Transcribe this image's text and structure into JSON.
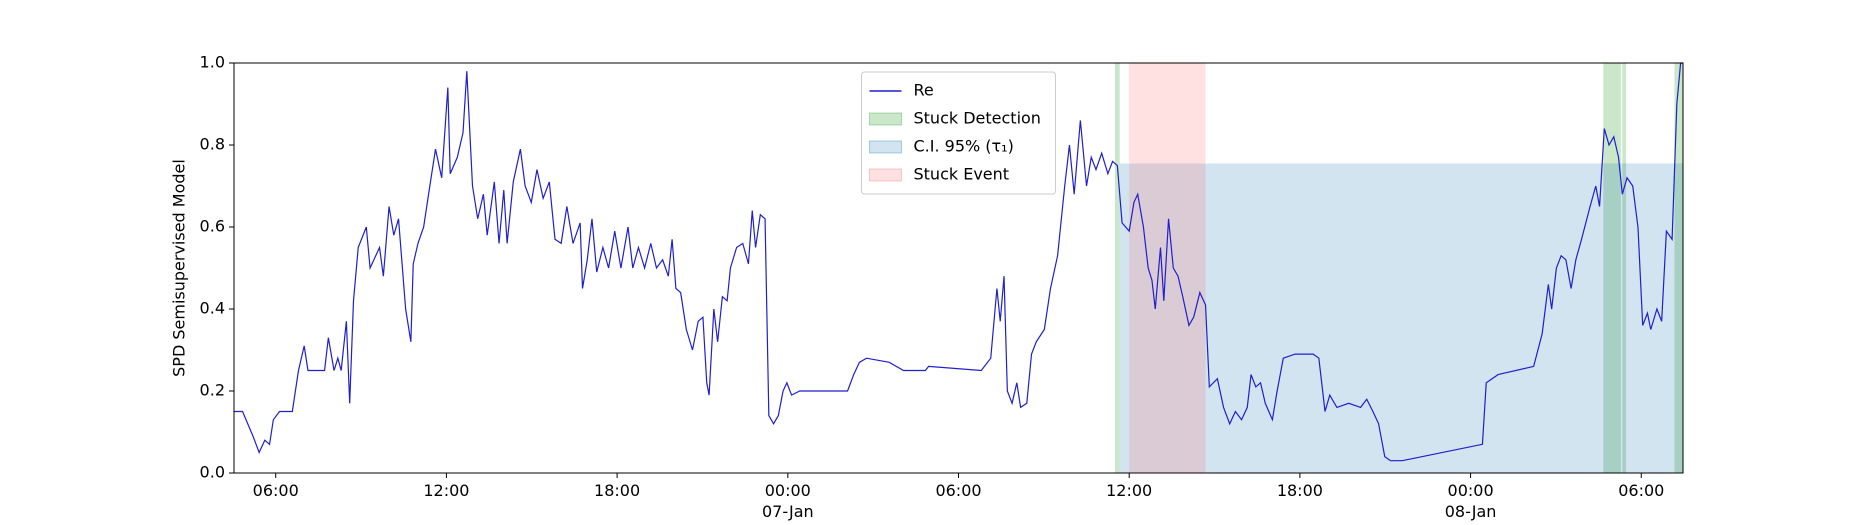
{
  "chart_data": {
    "type": "line",
    "ylabel": "SPD Semisupervised Model",
    "xlim": [
      "1900-01-06T04:32",
      "1900-01-08T07:28"
    ],
    "ylim": [
      0,
      1
    ],
    "xticks": [
      {
        "value": "1900-01-06T06:00",
        "label": "06:00"
      },
      {
        "value": "1900-01-06T12:00",
        "label": "12:00"
      },
      {
        "value": "1900-01-06T18:00",
        "label": "18:00"
      },
      {
        "value": "1900-01-07T00:00",
        "label": "00:00\n07-Jan\n1900"
      },
      {
        "value": "1900-01-07T06:00",
        "label": "06:00"
      },
      {
        "value": "1900-01-07T12:00",
        "label": "12:00"
      },
      {
        "value": "1900-01-07T18:00",
        "label": "18:00"
      },
      {
        "value": "1900-01-08T00:00",
        "label": "00:00\n08-Jan"
      },
      {
        "value": "1900-01-08T06:00",
        "label": "06:00"
      }
    ],
    "yticks": [
      {
        "value": 0,
        "label": "0.0"
      },
      0.2,
      0.4,
      0.6,
      0.8,
      {
        "value": 1,
        "label": "1.0"
      }
    ],
    "legend": "upper center",
    "series": [
      {
        "name": "Re",
        "color": "#1f1fcc",
        "x": [
          "1900-01-06T04:32",
          "1900-01-06T04:50",
          "1900-01-06T05:12",
          "1900-01-06T05:25",
          "1900-01-06T05:37",
          "1900-01-06T05:47",
          "1900-01-06T05:55",
          "1900-01-06T06:08",
          "1900-01-06T06:35",
          "1900-01-06T06:48",
          "1900-01-06T07:00",
          "1900-01-06T07:08",
          "1900-01-06T07:43",
          "1900-01-06T07:51",
          "1900-01-06T08:03",
          "1900-01-06T08:11",
          "1900-01-06T08:18",
          "1900-01-06T08:29",
          "1900-01-06T08:36",
          "1900-01-06T08:44",
          "1900-01-06T08:54",
          "1900-01-06T09:11",
          "1900-01-06T09:19",
          "1900-01-06T09:39",
          "1900-01-06T09:47",
          "1900-01-06T09:59",
          "1900-01-06T10:09",
          "1900-01-06T10:19",
          "1900-01-06T10:34",
          "1900-01-06T10:45",
          "1900-01-06T10:50",
          "1900-01-06T11:00",
          "1900-01-06T11:12",
          "1900-01-06T11:25",
          "1900-01-06T11:37",
          "1900-01-06T11:50",
          "1900-01-06T12:03",
          "1900-01-06T12:08",
          "1900-01-06T12:23",
          "1900-01-06T12:35",
          "1900-01-06T12:43",
          "1900-01-06T12:55",
          "1900-01-06T13:06",
          "1900-01-06T13:18",
          "1900-01-06T13:26",
          "1900-01-06T13:41",
          "1900-01-06T13:51",
          "1900-01-06T14:01",
          "1900-01-06T14:08",
          "1900-01-06T14:21",
          "1900-01-06T14:36",
          "1900-01-06T14:46",
          "1900-01-06T14:59",
          "1900-01-06T15:11",
          "1900-01-06T15:24",
          "1900-01-06T15:37",
          "1900-01-06T15:49",
          "1900-01-06T16:02",
          "1900-01-06T16:14",
          "1900-01-06T16:27",
          "1900-01-06T16:42",
          "1900-01-06T16:47",
          "1900-01-06T16:57",
          "1900-01-06T17:07",
          "1900-01-06T17:17",
          "1900-01-06T17:30",
          "1900-01-06T17:42",
          "1900-01-06T17:55",
          "1900-01-06T18:08",
          "1900-01-06T18:23",
          "1900-01-06T18:33",
          "1900-01-06T18:45",
          "1900-01-06T18:58",
          "1900-01-06T19:11",
          "1900-01-06T19:23",
          "1900-01-06T19:36",
          "1900-01-06T19:48",
          "1900-01-06T19:56",
          "1900-01-06T20:04",
          "1900-01-06T20:14",
          "1900-01-06T20:26",
          "1900-01-06T20:39",
          "1900-01-06T20:51",
          "1900-01-06T21:01",
          "1900-01-06T21:09",
          "1900-01-06T21:14",
          "1900-01-06T21:24",
          "1900-01-06T21:32",
          "1900-01-06T21:42",
          "1900-01-06T21:52",
          "1900-01-06T21:59",
          "1900-01-06T22:12",
          "1900-01-06T22:25",
          "1900-01-06T22:37",
          "1900-01-06T22:45",
          "1900-01-06T22:52",
          "1900-01-06T23:02",
          "1900-01-06T23:12",
          "1900-01-06T23:20",
          "1900-01-06T23:30",
          "1900-01-06T23:40",
          "1900-01-06T23:50",
          "1900-01-06T23:58",
          "1900-01-07T00:08",
          "1900-01-07T00:25",
          "1900-01-07T02:06",
          "1900-01-07T02:19",
          "1900-01-07T02:31",
          "1900-01-07T02:46",
          "1900-01-07T03:34",
          "1900-01-07T04:04",
          "1900-01-07T04:50",
          "1900-01-07T04:57",
          "1900-01-07T06:48",
          "1900-01-07T07:08",
          "1900-01-07T07:21",
          "1900-01-07T07:28",
          "1900-01-07T07:36",
          "1900-01-07T07:43",
          "1900-01-07T07:53",
          "1900-01-07T08:03",
          "1900-01-07T08:11",
          "1900-01-07T08:24",
          "1900-01-07T08:34",
          "1900-01-07T08:44",
          "1900-01-07T09:01",
          "1900-01-07T09:14",
          "1900-01-07T09:29",
          "1900-01-07T09:44",
          "1900-01-07T09:54",
          "1900-01-07T10:04",
          "1900-01-07T10:17",
          "1900-01-07T10:30",
          "1900-01-07T10:40",
          "1900-01-07T10:50",
          "1900-01-07T11:02",
          "1900-01-07T11:15",
          "1900-01-07T11:25",
          "1900-01-07T11:35",
          "1900-01-07T11:45",
          "1900-01-07T12:00",
          "1900-01-07T12:10",
          "1900-01-07T12:18",
          "1900-01-07T12:30",
          "1900-01-07T12:40",
          "1900-01-07T12:48",
          "1900-01-07T12:55",
          "1900-01-07T13:06",
          "1900-01-07T13:13",
          "1900-01-07T13:23",
          "1900-01-07T13:33",
          "1900-01-07T13:43",
          "1900-01-07T13:53",
          "1900-01-07T14:06",
          "1900-01-07T14:16",
          "1900-01-07T14:29",
          "1900-01-07T14:41",
          "1900-01-07T14:49",
          "1900-01-07T15:06",
          "1900-01-07T15:19",
          "1900-01-07T15:32",
          "1900-01-07T15:44",
          "1900-01-07T15:57",
          "1900-01-07T16:09",
          "1900-01-07T16:17",
          "1900-01-07T16:27",
          "1900-01-07T16:37",
          "1900-01-07T16:47",
          "1900-01-07T17:02",
          "1900-01-07T17:12",
          "1900-01-07T17:25",
          "1900-01-07T17:50",
          "1900-01-07T18:28",
          "1900-01-07T18:40",
          "1900-01-07T18:53",
          "1900-01-07T19:03",
          "1900-01-07T19:18",
          "1900-01-07T19:43",
          "1900-01-07T20:08",
          "1900-01-07T20:21",
          "1900-01-07T20:34",
          "1900-01-07T20:46",
          "1900-01-07T20:59",
          "1900-01-07T21:11",
          "1900-01-07T21:36",
          "1900-01-08T00:25",
          "1900-01-08T00:33",
          "1900-01-08T00:58",
          "1900-01-08T02:13",
          "1900-01-08T02:31",
          "1900-01-08T02:44",
          "1900-01-08T02:51",
          "1900-01-08T03:01",
          "1900-01-08T03:11",
          "1900-01-08T03:21",
          "1900-01-08T03:32",
          "1900-01-08T03:42",
          "1900-01-08T03:54",
          "1900-01-08T04:12",
          "1900-01-08T04:24",
          "1900-01-08T04:32",
          "1900-01-08T04:42",
          "1900-01-08T04:52",
          "1900-01-08T05:02",
          "1900-01-08T05:12",
          "1900-01-08T05:20",
          "1900-01-08T05:30",
          "1900-01-08T05:42",
          "1900-01-08T05:53",
          "1900-01-08T06:03",
          "1900-01-08T06:13",
          "1900-01-08T06:20",
          "1900-01-08T06:33",
          "1900-01-08T06:43",
          "1900-01-08T06:53",
          "1900-01-08T07:05",
          "1900-01-08T07:15",
          "1900-01-08T07:23",
          "1900-01-08T07:28"
        ],
        "values": [
          0.15,
          0.15,
          0.09,
          0.05,
          0.08,
          0.07,
          0.13,
          0.15,
          0.15,
          0.25,
          0.31,
          0.25,
          0.25,
          0.33,
          0.25,
          0.28,
          0.25,
          0.37,
          0.17,
          0.42,
          0.55,
          0.6,
          0.5,
          0.55,
          0.48,
          0.65,
          0.58,
          0.62,
          0.4,
          0.32,
          0.51,
          0.56,
          0.6,
          0.7,
          0.79,
          0.72,
          0.94,
          0.73,
          0.77,
          0.83,
          0.98,
          0.7,
          0.62,
          0.68,
          0.58,
          0.71,
          0.56,
          0.69,
          0.56,
          0.71,
          0.79,
          0.7,
          0.66,
          0.74,
          0.67,
          0.71,
          0.57,
          0.56,
          0.65,
          0.56,
          0.61,
          0.45,
          0.52,
          0.62,
          0.49,
          0.55,
          0.5,
          0.59,
          0.5,
          0.6,
          0.5,
          0.55,
          0.5,
          0.56,
          0.5,
          0.52,
          0.48,
          0.57,
          0.45,
          0.44,
          0.35,
          0.3,
          0.37,
          0.38,
          0.22,
          0.19,
          0.4,
          0.32,
          0.43,
          0.42,
          0.5,
          0.55,
          0.56,
          0.51,
          0.64,
          0.55,
          0.63,
          0.62,
          0.14,
          0.12,
          0.14,
          0.2,
          0.22,
          0.19,
          0.2,
          0.2,
          0.24,
          0.27,
          0.28,
          0.27,
          0.25,
          0.25,
          0.26,
          0.25,
          0.28,
          0.45,
          0.37,
          0.48,
          0.2,
          0.17,
          0.22,
          0.16,
          0.17,
          0.29,
          0.32,
          0.35,
          0.45,
          0.53,
          0.7,
          0.8,
          0.68,
          0.86,
          0.7,
          0.77,
          0.74,
          0.78,
          0.73,
          0.76,
          0.75,
          0.61,
          0.59,
          0.66,
          0.68,
          0.6,
          0.5,
          0.47,
          0.4,
          0.55,
          0.42,
          0.62,
          0.5,
          0.48,
          0.43,
          0.36,
          0.38,
          0.44,
          0.41,
          0.21,
          0.23,
          0.16,
          0.12,
          0.15,
          0.13,
          0.16,
          0.24,
          0.21,
          0.22,
          0.17,
          0.13,
          0.2,
          0.28,
          0.29,
          0.29,
          0.28,
          0.15,
          0.19,
          0.16,
          0.17,
          0.16,
          0.18,
          0.15,
          0.12,
          0.04,
          0.03,
          0.03,
          0.07,
          0.22,
          0.24,
          0.26,
          0.34,
          0.46,
          0.4,
          0.5,
          0.53,
          0.52,
          0.45,
          0.52,
          0.57,
          0.65,
          0.7,
          0.65,
          0.84,
          0.8,
          0.82,
          0.77,
          0.68,
          0.72,
          0.7,
          0.6,
          0.36,
          0.39,
          0.35,
          0.4,
          0.37,
          0.59,
          0.57,
          0.9,
          1.0,
          1.0
        ]
      }
    ],
    "spans": [
      {
        "name": "Stuck Detection",
        "color": "#2ca02c",
        "alpha": 0.25,
        "ranges": [
          [
            "1900-01-07T11:30",
            "1900-01-07T11:40"
          ],
          [
            "1900-01-08T04:40",
            "1900-01-08T05:17"
          ],
          [
            "1900-01-08T05:20",
            "1900-01-08T05:28"
          ],
          [
            "1900-01-08T07:10",
            "1900-01-08T07:28"
          ]
        ]
      },
      {
        "name": "C.I. 95% (τ₁)",
        "color": "#1f77b4",
        "alpha": 0.2,
        "ymax": 0.755,
        "ranges": [
          [
            "1900-01-07T11:40",
            "1900-01-08T07:28"
          ]
        ]
      },
      {
        "name": "Stuck Event",
        "color": "#ff6b6b",
        "alpha": 0.2,
        "ranges": [
          [
            "1900-01-07T12:00",
            "1900-01-07T14:41"
          ]
        ]
      }
    ]
  }
}
